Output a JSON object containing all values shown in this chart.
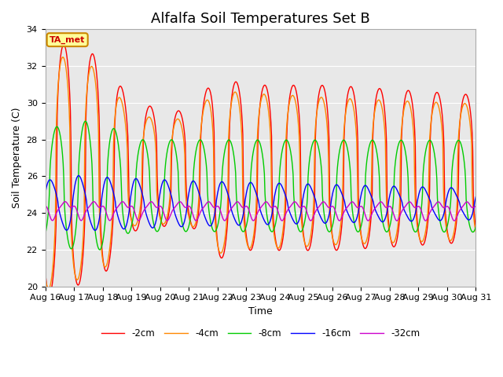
{
  "title": "Alfalfa Soil Temperatures Set B",
  "xlabel": "Time",
  "ylabel": "Soil Temperature (C)",
  "ylim": [
    20,
    34
  ],
  "xlim": [
    0,
    15
  ],
  "xtick_labels": [
    "Aug 16",
    "Aug 17",
    "Aug 18",
    "Aug 19",
    "Aug 20",
    "Aug 21",
    "Aug 22",
    "Aug 23",
    "Aug 24",
    "Aug 25",
    "Aug 26",
    "Aug 27",
    "Aug 28",
    "Aug 29",
    "Aug 30",
    "Aug 31"
  ],
  "legend_labels": [
    "-2cm",
    "-4cm",
    "-8cm",
    "-16cm",
    "-32cm"
  ],
  "line_colors": [
    "#ff0000",
    "#ff8800",
    "#00cc00",
    "#0000ff",
    "#cc00cc"
  ],
  "bg_color": "#e8e8e8",
  "fig_bg_color": "#ffffff",
  "annotation_text": "TA_met",
  "annotation_bg": "#ffff99",
  "annotation_border": "#cc8800",
  "title_fontsize": 13,
  "axis_fontsize": 9,
  "tick_fontsize": 8,
  "n_days": 15,
  "samples_per_day": 48
}
